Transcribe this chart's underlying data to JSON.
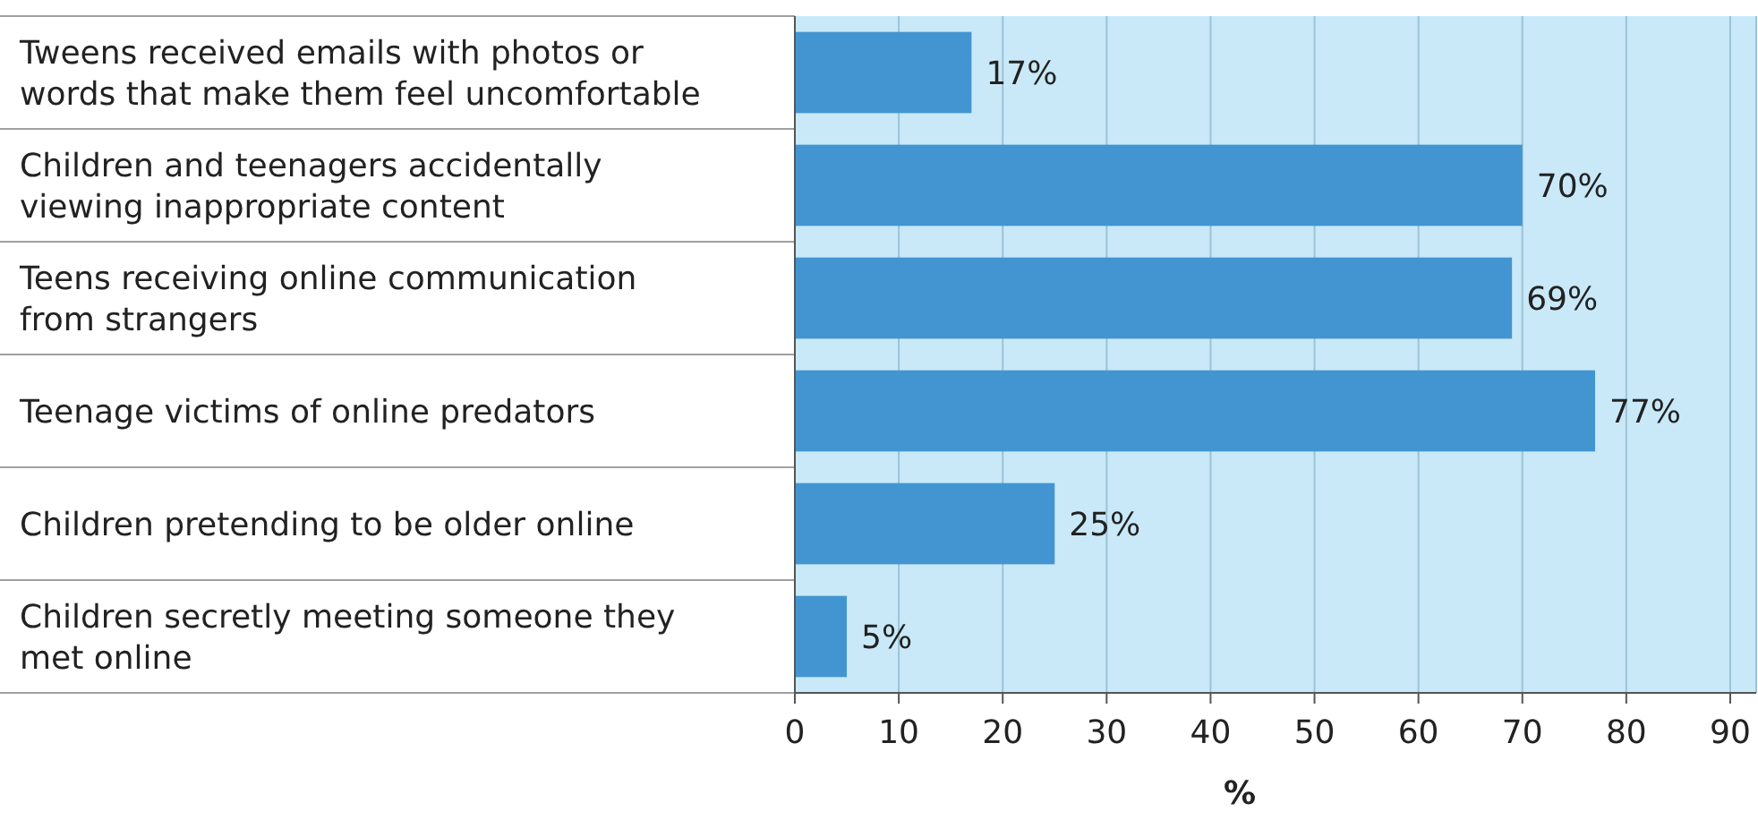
{
  "chart_data": {
    "type": "bar",
    "orientation": "horizontal",
    "categories": [
      "Tweens received emails with photos or words that make them feel uncomfortable",
      "Children and teenagers accidentally viewing inappropriate content",
      "Teens receiving online communication from strangers",
      "Teenage victims of online predators",
      "Children pretending to be older online",
      "Children secretly meeting someone they met online"
    ],
    "values": [
      17,
      70,
      69,
      77,
      25,
      5
    ],
    "value_labels": [
      "17%",
      "70%",
      "69%",
      "77%",
      "25%",
      "5%"
    ],
    "color": "#4395d1",
    "xlim": [
      0,
      92.5
    ],
    "xticks": [
      0,
      10,
      20,
      30,
      40,
      50,
      60,
      70,
      80,
      90
    ],
    "xlabel": "%",
    "grid": "x"
  }
}
